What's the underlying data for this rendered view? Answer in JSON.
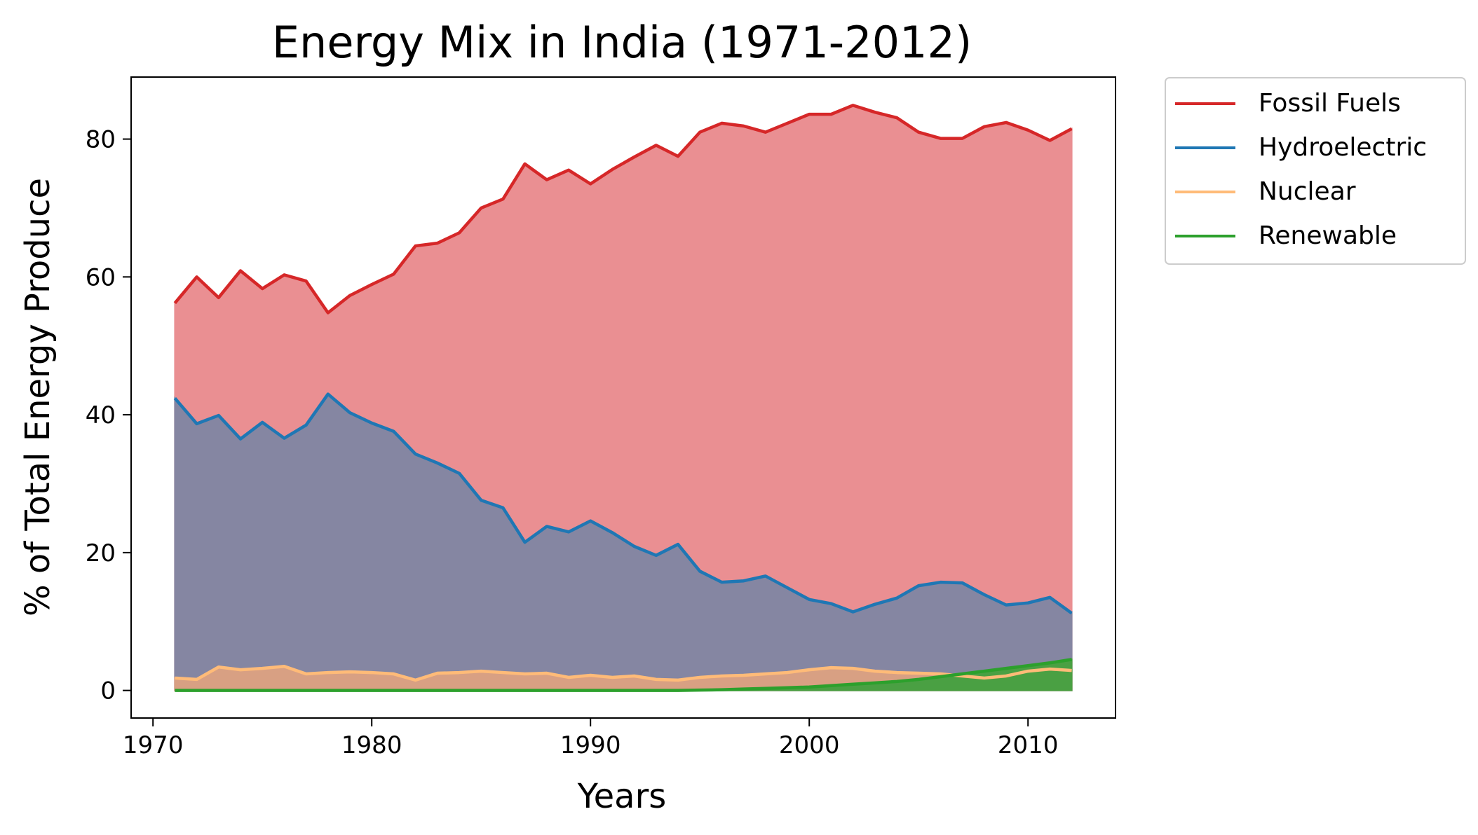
{
  "chart_data": {
    "type": "area",
    "title": "Energy Mix in India (1971-2012)",
    "xlabel": "Years",
    "ylabel": "% of Total Energy Produce",
    "xlim": [
      1969,
      2014
    ],
    "ylim": [
      -4,
      89
    ],
    "xticks": [
      1970,
      1980,
      1990,
      2000,
      2010
    ],
    "yticks": [
      0,
      20,
      40,
      60,
      80
    ],
    "grid": false,
    "legend_position": "outside-top-right",
    "x": [
      1971,
      1972,
      1973,
      1974,
      1975,
      1976,
      1977,
      1978,
      1979,
      1980,
      1981,
      1982,
      1983,
      1984,
      1985,
      1986,
      1987,
      1988,
      1989,
      1990,
      1991,
      1992,
      1993,
      1994,
      1995,
      1996,
      1997,
      1998,
      1999,
      2000,
      2001,
      2002,
      2003,
      2004,
      2005,
      2006,
      2007,
      2008,
      2009,
      2010,
      2011,
      2012
    ],
    "series": [
      {
        "name": "Fossil Fuels",
        "color": "#d62728",
        "fill": "#ea8f92",
        "values": [
          56.2,
          60.0,
          57.0,
          60.9,
          58.3,
          60.3,
          59.4,
          54.8,
          57.3,
          58.9,
          60.4,
          64.5,
          64.9,
          66.4,
          70.0,
          71.3,
          76.4,
          74.1,
          75.5,
          73.5,
          75.6,
          77.4,
          79.1,
          77.5,
          81.0,
          82.3,
          81.9,
          81.0,
          82.3,
          83.6,
          83.6,
          84.9,
          83.9,
          83.1,
          81.0,
          80.1,
          80.1,
          81.8,
          82.4,
          81.3,
          79.8,
          81.5
        ]
      },
      {
        "name": "Hydroelectric",
        "color": "#1f77b4",
        "fill": "#8586a2",
        "values": [
          42.4,
          38.7,
          39.9,
          36.5,
          38.9,
          36.6,
          38.5,
          43.0,
          40.3,
          38.8,
          37.6,
          34.3,
          33.0,
          31.5,
          27.6,
          26.5,
          21.5,
          23.8,
          23.0,
          24.6,
          22.9,
          20.9,
          19.6,
          21.2,
          17.3,
          15.7,
          15.9,
          16.6,
          14.9,
          13.2,
          12.6,
          11.4,
          12.5,
          13.4,
          15.2,
          15.7,
          15.6,
          13.9,
          12.4,
          12.7,
          13.5,
          11.2
        ]
      },
      {
        "name": "Nuclear",
        "color": "#ffbb78",
        "fill": "#d8a083",
        "values": [
          1.8,
          1.6,
          3.4,
          3.0,
          3.2,
          3.5,
          2.4,
          2.6,
          2.7,
          2.6,
          2.4,
          1.5,
          2.5,
          2.6,
          2.8,
          2.6,
          2.4,
          2.5,
          1.9,
          2.2,
          1.9,
          2.1,
          1.6,
          1.5,
          1.9,
          2.1,
          2.2,
          2.4,
          2.6,
          3.0,
          3.3,
          3.2,
          2.8,
          2.6,
          2.5,
          2.4,
          2.1,
          1.8,
          2.1,
          2.8,
          3.1,
          2.9
        ]
      },
      {
        "name": "Renewable",
        "color": "#2ca02c",
        "fill": "#4aa043",
        "values": [
          0,
          0,
          0,
          0,
          0,
          0,
          0,
          0,
          0,
          0,
          0,
          0,
          0,
          0,
          0,
          0,
          0,
          0,
          0,
          0,
          0,
          0,
          0,
          0,
          0.05,
          0.1,
          0.2,
          0.3,
          0.4,
          0.5,
          0.7,
          0.9,
          1.1,
          1.3,
          1.6,
          2.0,
          2.4,
          2.8,
          3.2,
          3.6,
          4.0,
          4.5
        ]
      }
    ]
  }
}
